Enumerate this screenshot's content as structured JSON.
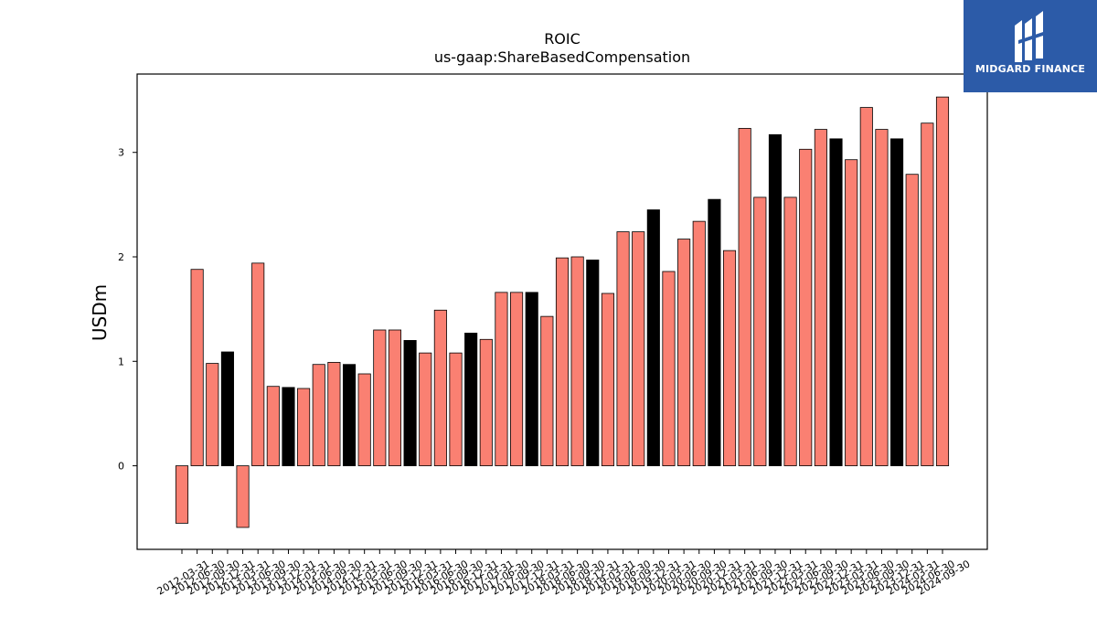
{
  "logo": {
    "name": "MIDGARD FINANCE",
    "bg_color": "#2c5ba8",
    "icon": "midgard-logo-mark-icon"
  },
  "chart_data": {
    "type": "bar",
    "title": "ROIC",
    "subtitle": "us-gaap:ShareBasedCompensation",
    "xlabel": "",
    "ylabel": "USDm",
    "ylim": [
      -0.8,
      3.75
    ],
    "yticks": [
      0,
      1,
      2,
      3
    ],
    "grid": false,
    "colors": {
      "quarter": "#fa8072",
      "q4": "#000000",
      "edge": "#000000"
    },
    "categories": [
      "2012-03-31",
      "2012-06-30",
      "2012-09-30",
      "2012-12-31",
      "2013-03-31",
      "2013-06-30",
      "2013-09-30",
      "2013-12-31",
      "2014-03-31",
      "2014-06-30",
      "2014-09-30",
      "2014-12-31",
      "2015-03-31",
      "2015-06-30",
      "2015-09-30",
      "2015-12-31",
      "2016-03-31",
      "2016-06-30",
      "2016-09-30",
      "2016-12-31",
      "2017-03-31",
      "2017-06-30",
      "2017-09-30",
      "2017-12-31",
      "2018-03-31",
      "2018-06-30",
      "2018-09-30",
      "2018-12-31",
      "2019-03-31",
      "2019-06-30",
      "2019-09-30",
      "2019-12-31",
      "2020-03-31",
      "2020-06-30",
      "2020-09-30",
      "2020-12-31",
      "2021-03-31",
      "2021-06-30",
      "2021-09-30",
      "2021-12-31",
      "2022-03-31",
      "2022-06-30",
      "2022-09-30",
      "2022-12-31",
      "2023-03-31",
      "2023-06-30",
      "2023-09-30",
      "2023-12-31",
      "2024-03-31",
      "2024-06-30",
      "2024-09-30"
    ],
    "values": [
      -0.55,
      1.88,
      0.98,
      1.09,
      -0.59,
      1.94,
      0.76,
      0.75,
      0.74,
      0.97,
      0.99,
      0.97,
      0.88,
      1.3,
      1.3,
      1.2,
      1.08,
      1.49,
      1.08,
      1.27,
      1.21,
      1.66,
      1.66,
      1.66,
      1.43,
      1.99,
      2.0,
      1.97,
      1.65,
      2.24,
      2.24,
      2.45,
      1.86,
      2.17,
      2.34,
      2.55,
      2.06,
      3.23,
      2.57,
      3.17,
      2.57,
      3.03,
      3.22,
      3.13,
      2.93,
      3.43,
      3.22,
      3.13,
      2.79,
      3.28,
      3.53
    ],
    "highlight_q4": [
      false,
      false,
      false,
      true,
      false,
      false,
      false,
      true,
      false,
      false,
      false,
      true,
      false,
      false,
      false,
      true,
      false,
      false,
      false,
      true,
      false,
      false,
      false,
      true,
      false,
      false,
      false,
      true,
      false,
      false,
      false,
      true,
      false,
      false,
      false,
      true,
      false,
      false,
      false,
      true,
      false,
      false,
      false,
      true,
      false,
      false,
      false,
      true,
      false,
      false,
      false
    ]
  }
}
